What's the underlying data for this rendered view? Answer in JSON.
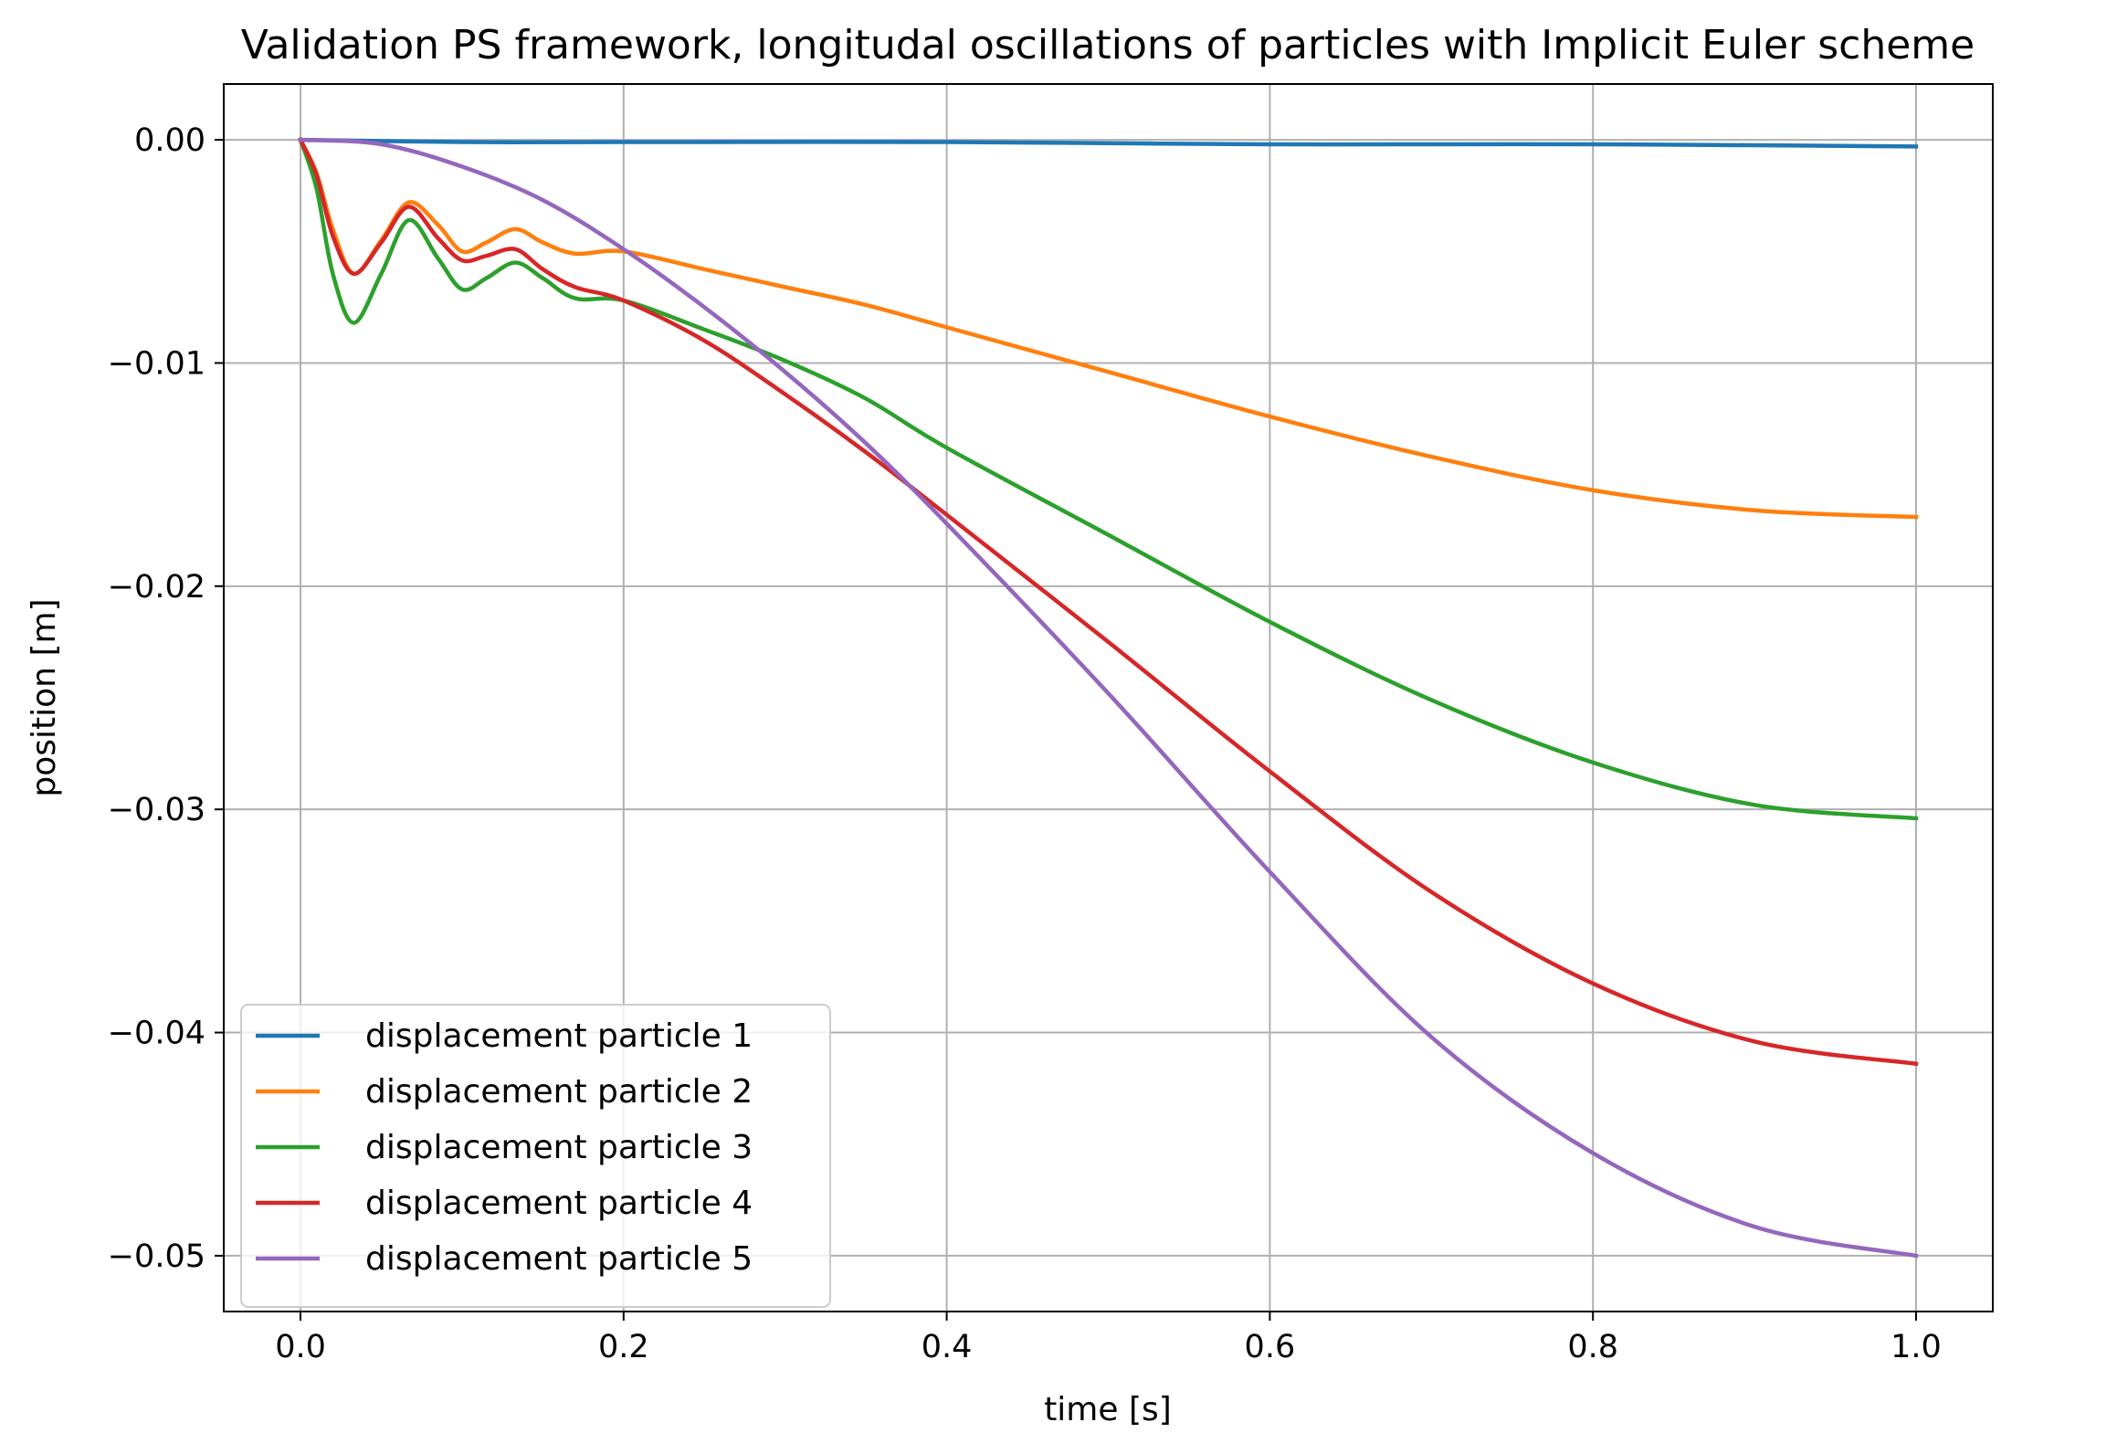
{
  "chart_data": {
    "type": "line",
    "title": "Validation PS framework, longitudal oscillations of particles with Implicit Euler scheme",
    "xlabel": "time [s]",
    "ylabel": "position [m]",
    "xlim": [
      -0.0475,
      1.0475
    ],
    "ylim": [
      -0.0525,
      0.0025
    ],
    "xticks": [
      0.0,
      0.2,
      0.4,
      0.6,
      0.8,
      1.0
    ],
    "xtick_labels": [
      "0.0",
      "0.2",
      "0.4",
      "0.6",
      "0.8",
      "1.0"
    ],
    "yticks": [
      0.0,
      -0.01,
      -0.02,
      -0.03,
      -0.04,
      -0.05
    ],
    "ytick_labels": [
      "0.00",
      "−0.01",
      "−0.02",
      "−0.03",
      "−0.04",
      "−0.05"
    ],
    "grid": true,
    "legend_position": "lower-left",
    "series": [
      {
        "name": "displacement particle 1",
        "color": "#1f77b4",
        "points": [
          [
            0.0,
            0.0
          ],
          [
            0.1,
            -0.0001
          ],
          [
            0.2,
            -0.0001
          ],
          [
            0.4,
            -0.0001
          ],
          [
            0.6,
            -0.0002
          ],
          [
            0.8,
            -0.0002
          ],
          [
            1.0,
            -0.0003
          ]
        ]
      },
      {
        "name": "displacement particle 2",
        "color": "#ff7f0e",
        "points": [
          [
            0.0,
            0.0
          ],
          [
            0.01,
            -0.0015
          ],
          [
            0.02,
            -0.004
          ],
          [
            0.033,
            -0.006
          ],
          [
            0.05,
            -0.0045
          ],
          [
            0.067,
            -0.0028
          ],
          [
            0.085,
            -0.0038
          ],
          [
            0.1,
            -0.005
          ],
          [
            0.115,
            -0.0046
          ],
          [
            0.133,
            -0.004
          ],
          [
            0.15,
            -0.0046
          ],
          [
            0.17,
            -0.0051
          ],
          [
            0.2,
            -0.005
          ],
          [
            0.25,
            -0.0058
          ],
          [
            0.3,
            -0.0066
          ],
          [
            0.35,
            -0.0074
          ],
          [
            0.4,
            -0.0084
          ],
          [
            0.5,
            -0.0104
          ],
          [
            0.6,
            -0.0124
          ],
          [
            0.7,
            -0.0142
          ],
          [
            0.8,
            -0.0157
          ],
          [
            0.9,
            -0.0166
          ],
          [
            1.0,
            -0.0169
          ]
        ]
      },
      {
        "name": "displacement particle 3",
        "color": "#2ca02c",
        "points": [
          [
            0.0,
            0.0
          ],
          [
            0.01,
            -0.0022
          ],
          [
            0.02,
            -0.006
          ],
          [
            0.033,
            -0.0082
          ],
          [
            0.05,
            -0.006
          ],
          [
            0.067,
            -0.0036
          ],
          [
            0.085,
            -0.0053
          ],
          [
            0.1,
            -0.0067
          ],
          [
            0.115,
            -0.0062
          ],
          [
            0.133,
            -0.0055
          ],
          [
            0.15,
            -0.0062
          ],
          [
            0.17,
            -0.0071
          ],
          [
            0.2,
            -0.0072
          ],
          [
            0.25,
            -0.0085
          ],
          [
            0.3,
            -0.0099
          ],
          [
            0.35,
            -0.0116
          ],
          [
            0.4,
            -0.0138
          ],
          [
            0.5,
            -0.0177
          ],
          [
            0.6,
            -0.0216
          ],
          [
            0.7,
            -0.0251
          ],
          [
            0.8,
            -0.0279
          ],
          [
            0.9,
            -0.0298
          ],
          [
            1.0,
            -0.0304
          ]
        ]
      },
      {
        "name": "displacement particle 4",
        "color": "#d62728",
        "points": [
          [
            0.0,
            0.0
          ],
          [
            0.01,
            -0.0016
          ],
          [
            0.02,
            -0.0043
          ],
          [
            0.033,
            -0.006
          ],
          [
            0.05,
            -0.0046
          ],
          [
            0.067,
            -0.003
          ],
          [
            0.085,
            -0.0044
          ],
          [
            0.1,
            -0.0054
          ],
          [
            0.115,
            -0.0052
          ],
          [
            0.133,
            -0.0049
          ],
          [
            0.15,
            -0.0058
          ],
          [
            0.17,
            -0.0066
          ],
          [
            0.2,
            -0.0072
          ],
          [
            0.25,
            -0.009
          ],
          [
            0.3,
            -0.0114
          ],
          [
            0.35,
            -0.014
          ],
          [
            0.4,
            -0.0168
          ],
          [
            0.5,
            -0.0225
          ],
          [
            0.6,
            -0.0283
          ],
          [
            0.7,
            -0.0337
          ],
          [
            0.8,
            -0.0378
          ],
          [
            0.9,
            -0.0404
          ],
          [
            1.0,
            -0.0414
          ]
        ]
      },
      {
        "name": "displacement particle 5",
        "color": "#9467bd",
        "points": [
          [
            0.0,
            0.0
          ],
          [
            0.05,
            -0.0002
          ],
          [
            0.1,
            -0.0012
          ],
          [
            0.15,
            -0.0027
          ],
          [
            0.2,
            -0.0049
          ],
          [
            0.25,
            -0.0075
          ],
          [
            0.3,
            -0.0104
          ],
          [
            0.35,
            -0.0136
          ],
          [
            0.4,
            -0.0172
          ],
          [
            0.5,
            -0.0248
          ],
          [
            0.6,
            -0.0328
          ],
          [
            0.7,
            -0.0402
          ],
          [
            0.8,
            -0.0454
          ],
          [
            0.9,
            -0.0487
          ],
          [
            1.0,
            -0.05
          ]
        ]
      }
    ]
  }
}
